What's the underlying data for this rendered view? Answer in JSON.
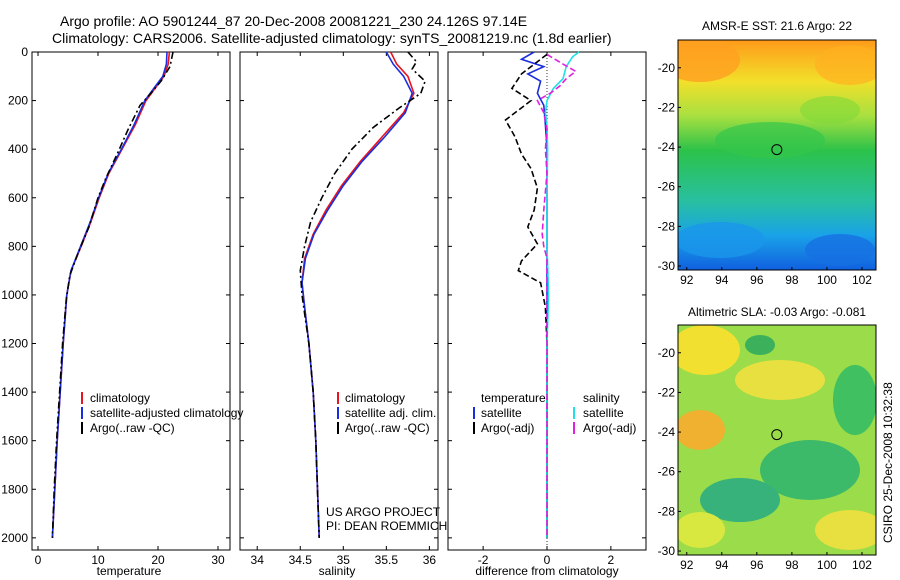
{
  "title": {
    "line1": "Argo profile: AO 5901244_87 20-Dec-2008 20081221_230 24.126S 97.14E",
    "line2": "Climatology: CARS2006. Satellite-adjusted climatology: synTS_20081219.nc (1.8d earlier)"
  },
  "side_label": "CSIRO 25-Dec-2008 10:32:38",
  "project_note": [
    "US ARGO PROJECT",
    "PI: DEAN ROEMMICH"
  ],
  "colors": {
    "climatology": "#e8141e",
    "satellite": "#1a2ee0",
    "argo": "#000000",
    "sal_satellite": "#20e0e6",
    "sal_argo": "#e020e0"
  },
  "chart_data": [
    {
      "type": "line",
      "name": "temperature-panel",
      "xlabel": "temperature",
      "xlim": [
        -1,
        32
      ],
      "ylim": [
        2050,
        0
      ],
      "xticks": [
        0,
        10,
        20,
        30
      ],
      "yticks": [
        0,
        200,
        400,
        600,
        800,
        1000,
        1200,
        1400,
        1600,
        1800,
        2000
      ],
      "legend": [
        "climatology",
        "satellite-adjusted climatology",
        "Argo(..raw -QC)"
      ],
      "series": [
        {
          "name": "climatology",
          "style": "solid",
          "color_key": "climatology",
          "points": [
            [
              21.9,
              0
            ],
            [
              21.7,
              50
            ],
            [
              21.0,
              100
            ],
            [
              19.5,
              150
            ],
            [
              18.0,
              200
            ],
            [
              16.2,
              300
            ],
            [
              14.0,
              400
            ],
            [
              11.8,
              500
            ],
            [
              10.2,
              600
            ],
            [
              8.8,
              700
            ],
            [
              7.2,
              800
            ],
            [
              5.5,
              900
            ],
            [
              4.8,
              1000
            ],
            [
              4.2,
              1200
            ],
            [
              3.7,
              1400
            ],
            [
              3.2,
              1600
            ],
            [
              2.8,
              1800
            ],
            [
              2.4,
              2000
            ]
          ]
        },
        {
          "name": "satellite-adjusted climatology",
          "style": "solid",
          "color_key": "satellite",
          "points": [
            [
              21.5,
              0
            ],
            [
              21.4,
              50
            ],
            [
              20.8,
              100
            ],
            [
              19.3,
              150
            ],
            [
              17.8,
              200
            ],
            [
              16.0,
              300
            ],
            [
              13.9,
              400
            ],
            [
              11.7,
              500
            ],
            [
              10.1,
              600
            ],
            [
              8.7,
              700
            ],
            [
              7.1,
              800
            ],
            [
              5.5,
              900
            ],
            [
              4.8,
              1000
            ],
            [
              4.2,
              1200
            ],
            [
              3.7,
              1400
            ],
            [
              3.2,
              1600
            ],
            [
              2.8,
              1800
            ],
            [
              2.4,
              2000
            ]
          ]
        },
        {
          "name": "Argo(..raw -QC)",
          "style": "dashdot",
          "color_key": "argo",
          "points": [
            [
              22.5,
              0
            ],
            [
              22.0,
              60
            ],
            [
              20.5,
              120
            ],
            [
              18.8,
              170
            ],
            [
              17.0,
              220
            ],
            [
              15.0,
              320
            ],
            [
              13.2,
              420
            ],
            [
              11.3,
              520
            ],
            [
              10.0,
              600
            ],
            [
              8.5,
              720
            ],
            [
              6.8,
              820
            ],
            [
              5.3,
              920
            ],
            [
              4.7,
              1020
            ],
            [
              4.1,
              1200
            ],
            [
              3.6,
              1400
            ],
            [
              3.1,
              1600
            ],
            [
              2.7,
              1800
            ],
            [
              2.4,
              2000
            ]
          ]
        }
      ]
    },
    {
      "type": "line",
      "name": "salinity-panel",
      "xlabel": "salinity",
      "xlim": [
        33.8,
        36.1
      ],
      "ylim": [
        2050,
        0
      ],
      "xticks": [
        34,
        34.5,
        35,
        35.5,
        36
      ],
      "legend": [
        "climatology",
        "satellite adj. clim.",
        "Argo(..raw -QC)"
      ],
      "series": [
        {
          "name": "climatology",
          "style": "solid",
          "color_key": "climatology",
          "points": [
            [
              35.55,
              0
            ],
            [
              35.62,
              50
            ],
            [
              35.75,
              100
            ],
            [
              35.82,
              170
            ],
            [
              35.7,
              250
            ],
            [
              35.45,
              350
            ],
            [
              35.2,
              450
            ],
            [
              34.98,
              550
            ],
            [
              34.8,
              650
            ],
            [
              34.65,
              750
            ],
            [
              34.55,
              850
            ],
            [
              34.52,
              950
            ],
            [
              34.55,
              1050
            ],
            [
              34.6,
              1200
            ],
            [
              34.65,
              1400
            ],
            [
              34.68,
              1600
            ],
            [
              34.7,
              1800
            ],
            [
              34.72,
              2000
            ]
          ]
        },
        {
          "name": "satellite adj. clim.",
          "style": "solid",
          "color_key": "satellite",
          "points": [
            [
              35.5,
              0
            ],
            [
              35.58,
              50
            ],
            [
              35.7,
              100
            ],
            [
              35.8,
              170
            ],
            [
              35.72,
              250
            ],
            [
              35.48,
              350
            ],
            [
              35.22,
              450
            ],
            [
              35.0,
              550
            ],
            [
              34.82,
              650
            ],
            [
              34.66,
              750
            ],
            [
              34.56,
              850
            ],
            [
              34.52,
              950
            ],
            [
              34.55,
              1050
            ],
            [
              34.6,
              1200
            ],
            [
              34.65,
              1400
            ],
            [
              34.68,
              1600
            ],
            [
              34.7,
              1800
            ],
            [
              34.72,
              2000
            ]
          ]
        },
        {
          "name": "Argo(..raw -QC)",
          "style": "dashdot",
          "color_key": "argo",
          "points": [
            [
              35.75,
              0
            ],
            [
              35.8,
              20
            ],
            [
              35.85,
              40
            ],
            [
              35.8,
              70
            ],
            [
              35.95,
              120
            ],
            [
              35.9,
              170
            ],
            [
              35.65,
              230
            ],
            [
              35.35,
              310
            ],
            [
              35.1,
              400
            ],
            [
              34.9,
              500
            ],
            [
              34.75,
              600
            ],
            [
              34.62,
              700
            ],
            [
              34.55,
              800
            ],
            [
              34.5,
              900
            ],
            [
              34.52,
              1000
            ],
            [
              34.56,
              1100
            ],
            [
              34.6,
              1200
            ],
            [
              34.65,
              1400
            ],
            [
              34.68,
              1600
            ],
            [
              34.7,
              1800
            ],
            [
              34.72,
              2000
            ]
          ]
        }
      ]
    },
    {
      "type": "line",
      "name": "difference-panel",
      "xlabel": "difference from climatology",
      "xlim": [
        -3.1,
        3.1
      ],
      "ylim": [
        2050,
        0
      ],
      "xticks": [
        -2,
        0,
        2
      ],
      "legend_groups": [
        {
          "header": "temperature",
          "items": [
            "satellite",
            "Argo(-adj)"
          ]
        },
        {
          "header": "salinity",
          "items": [
            "satellite",
            "Argo(-adj)"
          ]
        }
      ],
      "series": [
        {
          "name": "temperature satellite",
          "style": "solid",
          "color_key": "satellite",
          "points": [
            [
              -0.4,
              0
            ],
            [
              -0.8,
              30
            ],
            [
              -0.1,
              60
            ],
            [
              -0.6,
              90
            ],
            [
              -0.2,
              120
            ],
            [
              -0.3,
              170
            ],
            [
              -0.1,
              220
            ],
            [
              -0.05,
              300
            ],
            [
              0.0,
              400
            ],
            [
              0.0,
              500
            ],
            [
              0.0,
              600
            ],
            [
              0.0,
              700
            ],
            [
              0.0,
              800
            ],
            [
              0.0,
              900
            ],
            [
              0.0,
              1000
            ],
            [
              0.0,
              1500
            ],
            [
              0.0,
              2000
            ]
          ]
        },
        {
          "name": "temperature Argo(-adj)",
          "style": "dashed",
          "color_key": "argo",
          "points": [
            [
              0.0,
              10
            ],
            [
              -0.8,
              90
            ],
            [
              -1.1,
              150
            ],
            [
              -0.5,
              200
            ],
            [
              -1.3,
              280
            ],
            [
              -1.0,
              350
            ],
            [
              -0.8,
              420
            ],
            [
              -0.5,
              480
            ],
            [
              -0.3,
              560
            ],
            [
              -0.4,
              650
            ],
            [
              -0.6,
              720
            ],
            [
              -0.3,
              790
            ],
            [
              -0.8,
              860
            ],
            [
              -0.9,
              900
            ],
            [
              -0.2,
              950
            ],
            [
              -0.05,
              1050
            ],
            [
              0.0,
              1200
            ],
            [
              0.0,
              1400
            ],
            [
              0.0,
              1600
            ],
            [
              0.0,
              1800
            ],
            [
              0.0,
              2000
            ]
          ]
        },
        {
          "name": "salinity satellite",
          "style": "solid",
          "color_key": "sal_satellite",
          "points": [
            [
              1.0,
              0
            ],
            [
              0.8,
              20
            ],
            [
              0.6,
              60
            ],
            [
              0.5,
              110
            ],
            [
              0.2,
              150
            ],
            [
              0.0,
              200
            ],
            [
              -0.05,
              250
            ],
            [
              0.0,
              300
            ],
            [
              0.02,
              400
            ],
            [
              0.0,
              600
            ],
            [
              0.0,
              800
            ],
            [
              0.05,
              1000
            ],
            [
              0.0,
              1200
            ],
            [
              0.0,
              1500
            ],
            [
              0.0,
              1800
            ],
            [
              0.0,
              2000
            ]
          ]
        },
        {
          "name": "salinity Argo(-adj)",
          "style": "dashed",
          "color_key": "sal_argo",
          "points": [
            [
              0.0,
              10
            ],
            [
              0.5,
              50
            ],
            [
              0.9,
              80
            ],
            [
              0.6,
              110
            ],
            [
              0.4,
              140
            ],
            [
              0.1,
              170
            ],
            [
              -0.3,
              200
            ],
            [
              -0.1,
              250
            ],
            [
              0.0,
              320
            ],
            [
              -0.05,
              400
            ],
            [
              0.0,
              500
            ],
            [
              -0.1,
              650
            ],
            [
              -0.15,
              750
            ],
            [
              -0.1,
              800
            ],
            [
              0.0,
              850
            ],
            [
              0.0,
              1000
            ],
            [
              0.0,
              1200
            ],
            [
              0.0,
              1500
            ],
            [
              0.0,
              1800
            ],
            [
              0.0,
              2000
            ]
          ]
        }
      ]
    },
    {
      "type": "heatmap",
      "name": "sst-map",
      "title": "AMSR-E SST: 21.6 Argo: 22",
      "xlim": [
        91.5,
        102.8
      ],
      "ylim": [
        -30.2,
        -18.6
      ],
      "xticks": [
        92,
        94,
        96,
        98,
        100,
        102
      ],
      "yticks": [
        -20,
        -22,
        -24,
        -26,
        -28,
        -30
      ],
      "marker": {
        "lon": 97.14,
        "lat": -24.126
      }
    },
    {
      "type": "heatmap",
      "name": "sla-map",
      "title": "Altimetric SLA: -0.03 Argo: -0.081",
      "xlim": [
        91.5,
        102.8
      ],
      "ylim": [
        -30.2,
        -18.6
      ],
      "xticks": [
        92,
        94,
        96,
        98,
        100,
        102
      ],
      "yticks": [
        -20,
        -22,
        -24,
        -26,
        -28,
        -30
      ],
      "marker": {
        "lon": 97.14,
        "lat": -24.126
      }
    }
  ]
}
